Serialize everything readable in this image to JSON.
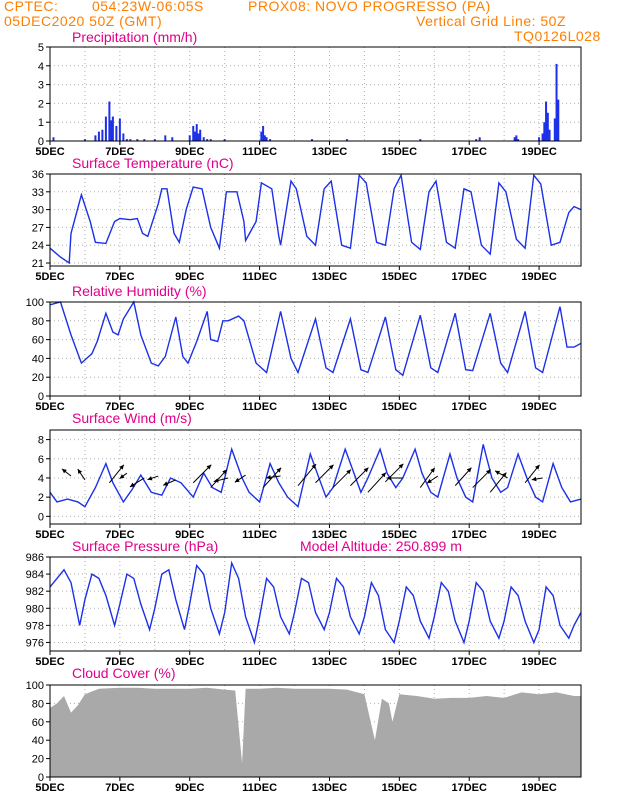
{
  "header": {
    "source": "CPTEC:",
    "coords": "054:23W-06:05S",
    "station": "PROX08: NOVO PROGRESSO (PA)",
    "run": "05DEC2020 50Z (GMT)",
    "grid_note": "Vertical Grid Line: 50Z",
    "model": "TQ0126L028"
  },
  "x_axis": {
    "labels": [
      "5DEC",
      "7DEC",
      "9DEC",
      "11DEC",
      "13DEC",
      "15DEC",
      "17DEC",
      "19DEC"
    ],
    "label_days": [
      0,
      2,
      4,
      6,
      8,
      10,
      12,
      14
    ],
    "range_days": [
      0,
      15.2
    ]
  },
  "colors": {
    "series": "#1c30e8",
    "cloud": "#a9a9a9",
    "title": "#e0008a",
    "header": "#ff7f00"
  },
  "chart_data": [
    {
      "id": "precip",
      "type": "bar",
      "title": "Precipitation (mm/h)",
      "ylim": [
        0,
        5
      ],
      "yticks": [
        0,
        1,
        2,
        3,
        4,
        5
      ],
      "x_unit": "days since 5DEC",
      "x": [
        0.1,
        1.0,
        1.3,
        1.4,
        1.5,
        1.6,
        1.7,
        1.75,
        1.8,
        1.9,
        2.0,
        2.1,
        2.2,
        2.3,
        2.5,
        2.7,
        3.0,
        3.3,
        3.5,
        4.0,
        4.1,
        4.15,
        4.2,
        4.25,
        4.3,
        4.4,
        4.5,
        4.6,
        5.0,
        6.05,
        6.1,
        6.15,
        6.2,
        6.3,
        7.5,
        8.5,
        10.6,
        12.2,
        12.3,
        13.3,
        13.35,
        13.4,
        14.0,
        14.1,
        14.15,
        14.2,
        14.25,
        14.3,
        14.45,
        14.5,
        14.55
      ],
      "values": [
        0.2,
        0.1,
        0.3,
        0.5,
        0.6,
        1.3,
        2.1,
        1.1,
        1.3,
        0.8,
        1.2,
        0.4,
        0.1,
        0.1,
        0.1,
        0.1,
        0.1,
        0.3,
        0.2,
        0.3,
        0.8,
        0.5,
        0.9,
        0.4,
        0.6,
        0.2,
        0.1,
        0.1,
        0.1,
        0.5,
        0.8,
        0.3,
        0.2,
        0.1,
        0.1,
        0.1,
        0.1,
        0.1,
        0.2,
        0.2,
        0.3,
        0.1,
        0.2,
        0.4,
        1.0,
        2.1,
        1.5,
        0.6,
        1.2,
        4.1,
        2.2
      ]
    },
    {
      "id": "temp",
      "type": "line",
      "title": "Surface Temperature (nC)",
      "ylim": [
        20.5,
        36
      ],
      "yticks": [
        21,
        24,
        27,
        30,
        33,
        36
      ],
      "x_unit": "days since 5DEC",
      "x": [
        0,
        0.3,
        0.55,
        0.6,
        0.9,
        1.15,
        1.3,
        1.6,
        1.85,
        2.0,
        2.3,
        2.5,
        2.65,
        2.8,
        3.1,
        3.2,
        3.35,
        3.55,
        3.7,
        3.9,
        4.1,
        4.35,
        4.6,
        4.85,
        5.05,
        5.35,
        5.55,
        5.6,
        5.9,
        6.05,
        6.35,
        6.55,
        6.6,
        6.9,
        7.05,
        7.35,
        7.6,
        7.85,
        8.05,
        8.35,
        8.6,
        8.85,
        9.05,
        9.35,
        9.6,
        9.85,
        10.05,
        10.35,
        10.6,
        10.85,
        11.05,
        11.35,
        11.6,
        11.85,
        12.05,
        12.35,
        12.6,
        12.85,
        13.05,
        13.35,
        13.6,
        13.85,
        14.05,
        14.35,
        14.6,
        14.85,
        15.0,
        15.2
      ],
      "values": [
        23.5,
        22.0,
        21.0,
        26.0,
        32.5,
        28.0,
        24.5,
        24.3,
        28.0,
        28.5,
        28.3,
        28.5,
        26.0,
        25.5,
        31.0,
        33.5,
        33.5,
        26.0,
        24.5,
        30.0,
        33.8,
        33.5,
        27.0,
        23.5,
        33.0,
        33.0,
        28.0,
        24.8,
        28.0,
        34.5,
        33.5,
        25.5,
        24.0,
        34.8,
        33.5,
        25.5,
        24.0,
        33.5,
        34.8,
        24.0,
        23.5,
        35.8,
        34.5,
        24.5,
        24.0,
        33.5,
        35.8,
        24.5,
        23.3,
        33.0,
        34.8,
        24.5,
        23.5,
        33.5,
        33.0,
        24.0,
        22.5,
        34.5,
        33.0,
        25.0,
        23.5,
        35.8,
        34.3,
        24.0,
        24.5,
        29.5,
        30.5,
        30.0
      ]
    },
    {
      "id": "rh",
      "type": "line",
      "title": "Relative Humidity (%)",
      "ylim": [
        0,
        100
      ],
      "yticks": [
        0,
        20,
        40,
        60,
        80,
        100
      ],
      "x_unit": "days since 5DEC",
      "x": [
        0,
        0.3,
        0.6,
        0.9,
        1.2,
        1.35,
        1.6,
        1.8,
        1.95,
        2.1,
        2.4,
        2.6,
        2.9,
        3.1,
        3.3,
        3.6,
        3.8,
        3.95,
        4.2,
        4.5,
        4.6,
        4.8,
        4.95,
        5.1,
        5.4,
        5.55,
        5.9,
        6.2,
        6.6,
        6.9,
        7.1,
        7.6,
        7.9,
        8.1,
        8.6,
        8.9,
        9.1,
        9.6,
        9.9,
        10.1,
        10.6,
        10.9,
        11.1,
        11.6,
        11.9,
        12.1,
        12.6,
        12.9,
        13.1,
        13.6,
        13.9,
        14.1,
        14.6,
        14.8,
        15.0,
        15.2
      ],
      "values": [
        97,
        100,
        65,
        35,
        45,
        58,
        88,
        68,
        65,
        82,
        100,
        65,
        35,
        32,
        42,
        84,
        42,
        35,
        58,
        90,
        60,
        58,
        80,
        80,
        85,
        80,
        35,
        25,
        90,
        40,
        25,
        82,
        30,
        25,
        82,
        28,
        25,
        84,
        28,
        22,
        86,
        30,
        25,
        88,
        28,
        27,
        88,
        35,
        25,
        90,
        30,
        25,
        95,
        52,
        52,
        56
      ]
    },
    {
      "id": "wind",
      "type": "line",
      "title": "Surface Wind (m/s)",
      "ylim": [
        -0.8,
        9
      ],
      "yticks": [
        0,
        2,
        4,
        6,
        8
      ],
      "x_unit": "days since 5DEC",
      "x": [
        0,
        0.2,
        0.5,
        0.8,
        1.0,
        1.3,
        1.6,
        1.8,
        2.1,
        2.35,
        2.6,
        2.9,
        3.2,
        3.45,
        3.75,
        4.1,
        4.4,
        4.65,
        4.9,
        5.2,
        5.5,
        5.7,
        6.0,
        6.3,
        6.55,
        6.8,
        7.1,
        7.45,
        7.65,
        7.9,
        8.1,
        8.45,
        8.65,
        8.9,
        9.1,
        9.45,
        9.65,
        9.9,
        10.1,
        10.45,
        10.65,
        10.9,
        11.1,
        11.45,
        11.65,
        11.9,
        12.1,
        12.4,
        12.65,
        12.9,
        13.1,
        13.4,
        13.65,
        13.9,
        14.1,
        14.4,
        14.65,
        14.9,
        15.2
      ],
      "values": [
        2.5,
        1.5,
        1.8,
        1.5,
        1.0,
        3.0,
        5.5,
        3.5,
        1.5,
        2.8,
        4.3,
        2.5,
        2.2,
        4.0,
        3.5,
        2.0,
        4.5,
        3.0,
        2.5,
        7.0,
        4.0,
        2.5,
        1.5,
        5.5,
        3.5,
        2.0,
        1.0,
        6.5,
        4.5,
        2.0,
        3.0,
        7.0,
        5.0,
        2.5,
        4.0,
        7.0,
        4.5,
        3.0,
        4.0,
        7.0,
        4.5,
        2.5,
        2.0,
        6.5,
        4.0,
        2.0,
        1.5,
        7.5,
        4.0,
        2.5,
        3.0,
        6.5,
        4.0,
        2.0,
        1.5,
        5.5,
        3.0,
        1.5,
        1.8
      ],
      "vectors": [
        {
          "x": 0.6,
          "y": 4.2,
          "u": -0.5,
          "v": 0.4
        },
        {
          "x": 1.0,
          "y": 3.8,
          "u": -0.4,
          "v": 0.6
        },
        {
          "x": 1.7,
          "y": 3.5,
          "u": 0.8,
          "v": 1.0
        },
        {
          "x": 2.2,
          "y": 4.5,
          "u": -0.4,
          "v": -0.3
        },
        {
          "x": 2.7,
          "y": 4.0,
          "u": -0.8,
          "v": -0.5
        },
        {
          "x": 3.1,
          "y": 4.2,
          "u": -0.6,
          "v": -0.2
        },
        {
          "x": 3.6,
          "y": 3.8,
          "u": -0.7,
          "v": -0.3
        },
        {
          "x": 4.1,
          "y": 3.5,
          "u": 1.0,
          "v": 1.0
        },
        {
          "x": 4.6,
          "y": 3.0,
          "u": 0.9,
          "v": 1.0
        },
        {
          "x": 5.1,
          "y": 4.0,
          "u": -0.8,
          "v": -0.2
        },
        {
          "x": 5.6,
          "y": 4.3,
          "u": -0.6,
          "v": -0.4
        },
        {
          "x": 6.1,
          "y": 3.0,
          "u": 1.0,
          "v": 1.1
        },
        {
          "x": 6.6,
          "y": 4.2,
          "u": -0.8,
          "v": -0.1
        },
        {
          "x": 7.1,
          "y": 3.2,
          "u": 1.0,
          "v": 1.2
        },
        {
          "x": 7.6,
          "y": 3.5,
          "u": 1.0,
          "v": 1.0
        },
        {
          "x": 8.1,
          "y": 3.0,
          "u": 1.0,
          "v": 1.0
        },
        {
          "x": 8.6,
          "y": 3.2,
          "u": 1.0,
          "v": 1.0
        },
        {
          "x": 9.1,
          "y": 2.5,
          "u": 1.0,
          "v": 1.1
        },
        {
          "x": 9.6,
          "y": 3.6,
          "u": 1.0,
          "v": 1.0
        },
        {
          "x": 10.1,
          "y": 4.0,
          "u": -0.9,
          "v": 0.0
        },
        {
          "x": 10.6,
          "y": 3.0,
          "u": 0.8,
          "v": 1.1
        },
        {
          "x": 11.1,
          "y": 4.2,
          "u": -0.6,
          "v": -0.4
        },
        {
          "x": 11.6,
          "y": 3.2,
          "u": 0.9,
          "v": 1.0
        },
        {
          "x": 12.1,
          "y": 3.0,
          "u": 1.0,
          "v": 1.0
        },
        {
          "x": 12.6,
          "y": 2.5,
          "u": 0.9,
          "v": 1.1
        },
        {
          "x": 13.1,
          "y": 4.0,
          "u": -0.7,
          "v": 0.4
        },
        {
          "x": 13.6,
          "y": 3.5,
          "u": 0.8,
          "v": 1.0
        },
        {
          "x": 14.1,
          "y": 4.0,
          "u": -0.6,
          "v": -0.1
        }
      ]
    },
    {
      "id": "pressure",
      "type": "line",
      "title": "Surface Pressure (hPa)",
      "extra_label": "Model Altitude: 250.899 m",
      "ylim": [
        975,
        986
      ],
      "yticks": [
        976,
        978,
        980,
        982,
        984,
        986
      ],
      "x_unit": "days since 5DEC",
      "x": [
        0,
        0.2,
        0.4,
        0.6,
        0.85,
        1.0,
        1.2,
        1.4,
        1.6,
        1.85,
        2.0,
        2.2,
        2.4,
        2.6,
        2.85,
        3.0,
        3.2,
        3.4,
        3.6,
        3.85,
        4.0,
        4.2,
        4.4,
        4.6,
        4.85,
        5.0,
        5.2,
        5.4,
        5.6,
        5.85,
        6.0,
        6.2,
        6.4,
        6.6,
        6.85,
        7.0,
        7.2,
        7.4,
        7.6,
        7.85,
        8.0,
        8.2,
        8.4,
        8.6,
        8.85,
        9.0,
        9.2,
        9.4,
        9.6,
        9.85,
        10.0,
        10.2,
        10.4,
        10.6,
        10.85,
        11.0,
        11.2,
        11.4,
        11.6,
        11.85,
        12.0,
        12.2,
        12.4,
        12.6,
        12.85,
        13.0,
        13.2,
        13.4,
        13.6,
        13.85,
        14.0,
        14.2,
        14.4,
        14.6,
        14.85,
        15.0,
        15.2
      ],
      "values": [
        982.5,
        983.5,
        984.5,
        983.0,
        978.0,
        981.0,
        984.0,
        983.5,
        981.5,
        978.0,
        980.5,
        984.0,
        983.5,
        980.5,
        977.5,
        980.0,
        984.0,
        984.5,
        981.0,
        977.5,
        980.5,
        985.0,
        984.0,
        980.0,
        977.0,
        979.5,
        985.3,
        983.5,
        979.0,
        976.0,
        979.0,
        983.5,
        982.5,
        979.0,
        977.0,
        979.5,
        983.5,
        983.0,
        979.5,
        977.5,
        979.5,
        983.5,
        982.5,
        979.0,
        977.0,
        979.0,
        983.0,
        981.5,
        977.5,
        976.0,
        978.5,
        982.5,
        981.5,
        978.5,
        976.5,
        979.0,
        983.0,
        982.0,
        978.5,
        976.0,
        978.5,
        983.0,
        982.0,
        978.5,
        976.5,
        978.5,
        982.5,
        981.5,
        978.5,
        976.0,
        977.5,
        982.5,
        981.5,
        978.0,
        976.5,
        978.0,
        979.5
      ]
    },
    {
      "id": "cloud",
      "type": "area",
      "title": "Cloud Cover (%)",
      "ylim": [
        0,
        100
      ],
      "yticks": [
        0,
        20,
        40,
        60,
        80,
        100
      ],
      "x_unit": "days since 5DEC",
      "x": [
        0,
        0.2,
        0.4,
        0.6,
        0.8,
        1.0,
        1.4,
        2.0,
        2.5,
        3.0,
        3.5,
        4.0,
        4.5,
        5.0,
        5.3,
        5.5,
        5.6,
        5.8,
        6.0,
        6.5,
        7.0,
        7.5,
        8.0,
        8.5,
        9.0,
        9.3,
        9.5,
        9.7,
        9.8,
        10.0,
        10.5,
        11.0,
        11.5,
        12.0,
        12.5,
        13.0,
        13.5,
        14.0,
        14.5,
        15.0,
        15.2
      ],
      "values": [
        75,
        80,
        88,
        70,
        78,
        90,
        96,
        97,
        97,
        96,
        96,
        96,
        97,
        95,
        94,
        15,
        96,
        96,
        96,
        97,
        96,
        96,
        96,
        95,
        90,
        40,
        85,
        80,
        60,
        90,
        88,
        85,
        86,
        86,
        88,
        86,
        92,
        90,
        92,
        88,
        88
      ]
    }
  ]
}
